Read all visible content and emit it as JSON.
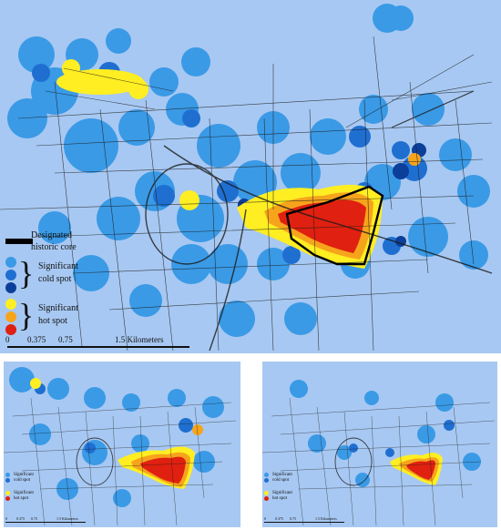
{
  "colors": {
    "background": "#a7c8f2",
    "light_blue": "#3a9ae6",
    "mid_blue": "#1f6fd1",
    "dark_blue": "#0c3f9a",
    "yellow": "#ffee22",
    "orange": "#f6a41c",
    "red": "#e02010",
    "street": "#1a1a1a",
    "historic_core": "#000000"
  },
  "main_map": {
    "legend": {
      "historic_core_label": "Designated historic core",
      "cold_spot_label": "Significant cold spot",
      "hot_spot_label": "Significant hot spot"
    },
    "scale_bar": {
      "ticks": [
        "0",
        "0.375",
        "0.75",
        "1.5 Kilometers"
      ]
    }
  },
  "small_map_left": {
    "legend": {
      "cold_spot_label": "Significant cold spot",
      "hot_spot_label": "Significant hot spot"
    },
    "scale_bar": {
      "ticks": [
        "0",
        "0.375",
        "0.75",
        "1.5 Kilometers"
      ]
    }
  },
  "small_map_right": {
    "legend": {
      "cold_spot_label": "Significant cold spot",
      "hot_spot_label": "Significant hot spot"
    },
    "scale_bar": {
      "ticks": [
        "0",
        "0.375",
        "0.75",
        "1.5 Kilometers"
      ]
    }
  }
}
